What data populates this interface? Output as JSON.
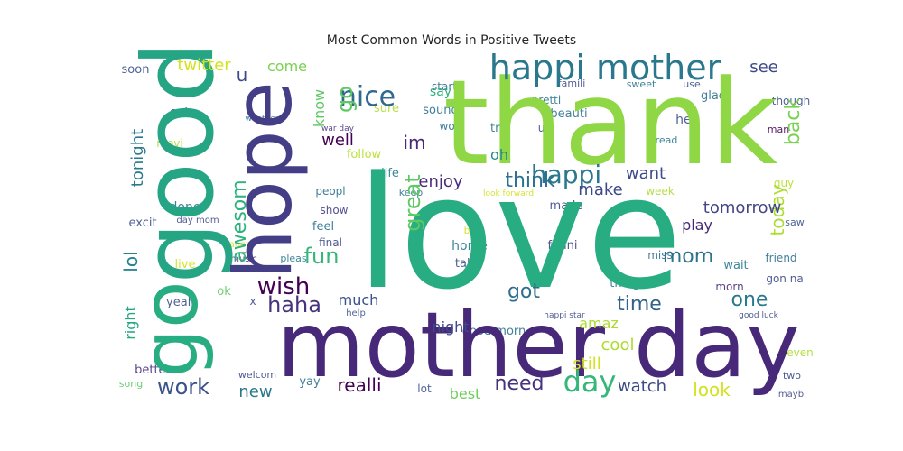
{
  "chart_data": {
    "type": "wordcloud",
    "title": "Most Common Words in Positive Tweets",
    "background": "#ffffff",
    "colormap": "viridis",
    "words": [
      {
        "text": "love",
        "color": "#27ad81"
      },
      {
        "text": "thank",
        "color": "#8fd744"
      },
      {
        "text": "good",
        "color": "#25a584"
      },
      {
        "text": "mother day",
        "color": "#482878"
      },
      {
        "text": "hope",
        "color": "#433e85"
      },
      {
        "text": "go",
        "color": "#27ad81"
      },
      {
        "text": "happi mother",
        "color": "#2a788e"
      },
      {
        "text": "day",
        "color": "#35b779"
      },
      {
        "text": "happi",
        "color": "#2a788e"
      },
      {
        "text": "nice",
        "color": "#31688e"
      },
      {
        "text": "wish",
        "color": "#440154"
      },
      {
        "text": "think",
        "color": "#2c728e"
      },
      {
        "text": "fun",
        "color": "#35b779"
      },
      {
        "text": "awesom",
        "color": "#2db27d"
      },
      {
        "text": "great",
        "color": "#5ec962"
      },
      {
        "text": "lol",
        "color": "#26828e"
      },
      {
        "text": "today",
        "color": "#addc30"
      },
      {
        "text": "go",
        "color": "#5ec962"
      },
      {
        "text": "haha",
        "color": "#46337e"
      },
      {
        "text": "mom",
        "color": "#2c728e"
      },
      {
        "text": "got",
        "color": "#2e6e8e"
      },
      {
        "text": "make",
        "color": "#3e4a89"
      },
      {
        "text": "back",
        "color": "#7ad151"
      },
      {
        "text": "time",
        "color": "#33638d"
      },
      {
        "text": "one",
        "color": "#2a788e"
      },
      {
        "text": "work",
        "color": "#3b528b"
      },
      {
        "text": "realli",
        "color": "#440154"
      },
      {
        "text": "need",
        "color": "#46337e"
      },
      {
        "text": "look",
        "color": "#d2e21b"
      },
      {
        "text": "watch",
        "color": "#3e4a89"
      },
      {
        "text": "best",
        "color": "#6ccd5a"
      },
      {
        "text": "well",
        "color": "#440154"
      },
      {
        "text": "im",
        "color": "#482878"
      },
      {
        "text": "oh",
        "color": "#23898e"
      },
      {
        "text": "u",
        "color": "#3e4a89"
      },
      {
        "text": "tonight",
        "color": "#2a788e"
      },
      {
        "text": "enjoy",
        "color": "#472d7b"
      },
      {
        "text": "want",
        "color": "#3e4a89"
      },
      {
        "text": "tomorrow",
        "color": "#414487"
      },
      {
        "text": "much",
        "color": "#3b528b"
      },
      {
        "text": "night",
        "color": "#3e4a89"
      },
      {
        "text": "amaz",
        "color": "#addc30"
      },
      {
        "text": "cool",
        "color": "#addc30"
      },
      {
        "text": "still",
        "color": "#d2e21b"
      },
      {
        "text": "new",
        "color": "#2a788e"
      },
      {
        "text": "twitter",
        "color": "#d2e21b"
      },
      {
        "text": "come",
        "color": "#7ad151"
      },
      {
        "text": "see",
        "color": "#3e4a89"
      },
      {
        "text": "know",
        "color": "#5ec962"
      },
      {
        "text": "right",
        "color": "#22a884"
      },
      {
        "text": "play",
        "color": "#482878"
      },
      {
        "text": "say",
        "color": "#2db27d"
      }
    ]
  }
}
